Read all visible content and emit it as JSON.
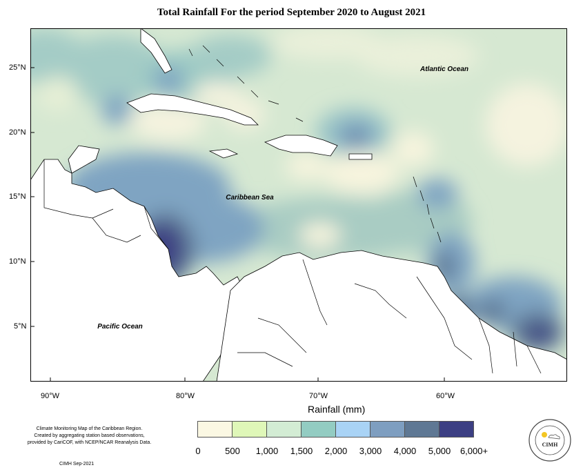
{
  "title": "Total Rainfall For the period September 2020 to August 2021",
  "map": {
    "lat_labels": [
      "25°N",
      "20°N",
      "15°N",
      "10°N",
      "5°N"
    ],
    "lon_labels": [
      "90°W",
      "80°W",
      "70°W",
      "60°W"
    ],
    "place_labels": {
      "atlantic": "Atlantic Ocean",
      "caribbean": "Caribbean Sea",
      "pacific": "Pacific Ocean"
    }
  },
  "legend": {
    "title": "Rainfall (mm)",
    "tick_labels": [
      "0",
      "500",
      "1,000",
      "1,500",
      "2,000",
      "3,000",
      "4,000",
      "5,000",
      "6,000+"
    ],
    "colors": [
      "#fbf8e3",
      "#dff7b8",
      "#d3ecd4",
      "#93ccc2",
      "#a9d3f5",
      "#7e9ec0",
      "#5f7894",
      "#3c3f83"
    ]
  },
  "credit": {
    "line1": "Climate Monitoring Map of the Caribbean Region.",
    "line2": "Created by aggregating station based observations,",
    "line3": "provided by CariCOF, with NCEP/NCAR Reanalysis Data."
  },
  "footer": "CIMH Sep-2021",
  "logo": {
    "text": "CIMH"
  }
}
